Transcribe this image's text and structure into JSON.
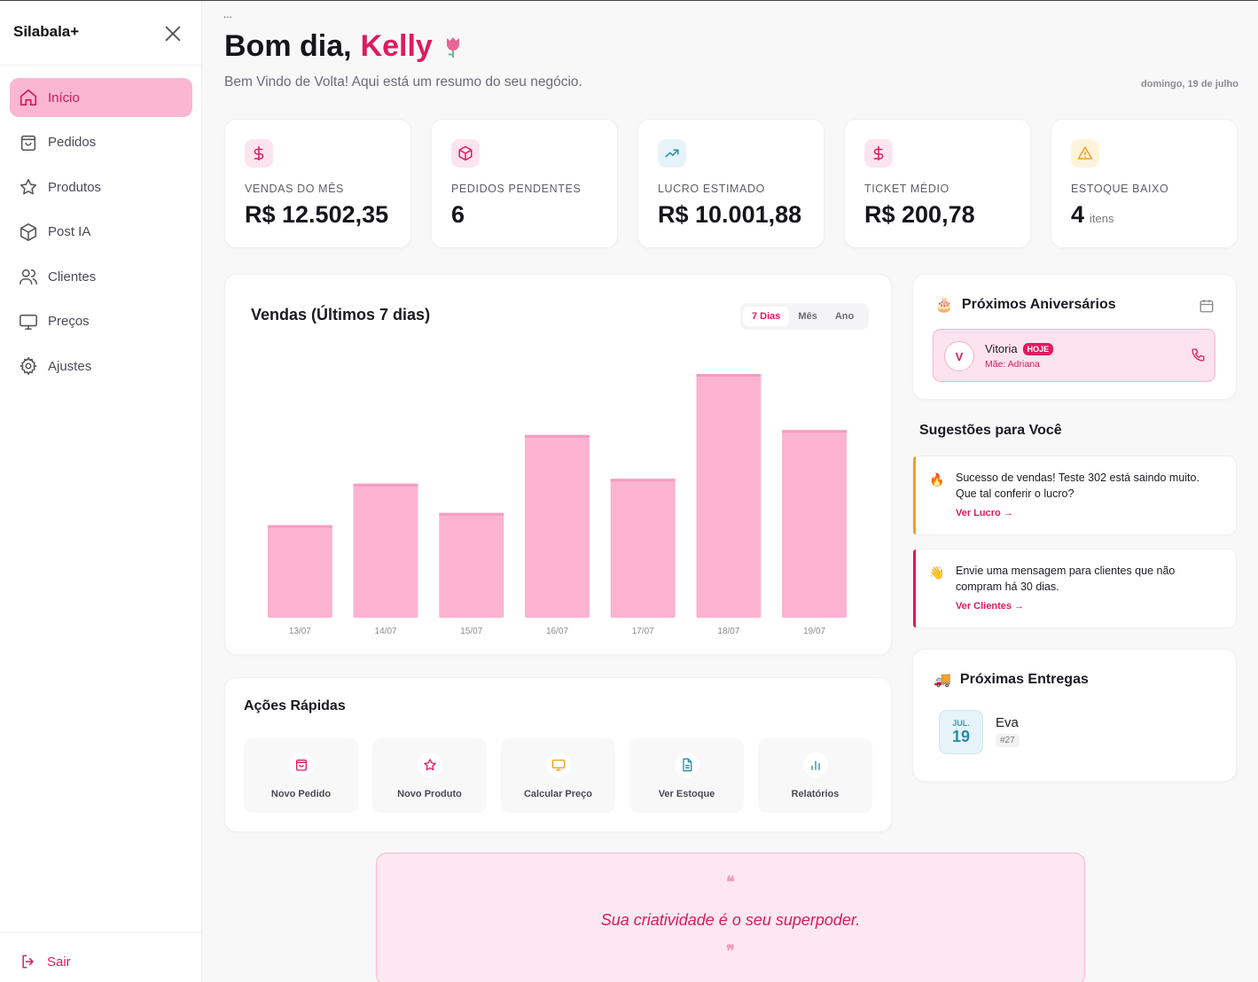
{
  "sidebar": {
    "brand": "Silabala+",
    "items": [
      {
        "label": "Início",
        "icon": "home-icon",
        "active": true
      },
      {
        "label": "Pedidos",
        "icon": "bag-icon"
      },
      {
        "label": "Produtos",
        "icon": "star-icon"
      },
      {
        "label": "Post IA",
        "icon": "box-icon"
      },
      {
        "label": "Clientes",
        "icon": "users-icon"
      },
      {
        "label": "Preços",
        "icon": "monitor-icon"
      },
      {
        "label": "Ajustes",
        "icon": "gear-icon"
      }
    ],
    "logout": "Sair"
  },
  "header": {
    "dots": "...",
    "greeting": "Bom dia,",
    "name": "Kelly",
    "subtitle": "Bem Vindo de Volta! Aqui está um resumo do seu negócio.",
    "date": "domingo, 19 de julho"
  },
  "stats": [
    {
      "label": "VENDAS DO MÊS",
      "value": "R$ 12.502,35",
      "unit": "",
      "icon": "dollar-icon",
      "bg": "#fde4ee",
      "color": "#e0195f"
    },
    {
      "label": "PEDIDOS PENDENTES",
      "value": "6",
      "unit": "",
      "icon": "box-icon",
      "bg": "#fde4ee",
      "color": "#e0195f"
    },
    {
      "label": "LUCRO ESTIMADO",
      "value": "R$ 10.001,88",
      "unit": "",
      "icon": "trend-up-icon",
      "bg": "#e6f4f8",
      "color": "#2a8aa8"
    },
    {
      "label": "TICKET MÉDIO",
      "value": "R$ 200,78",
      "unit": "",
      "icon": "dollar-icon",
      "bg": "#fde4ee",
      "color": "#e0195f"
    },
    {
      "label": "ESTOQUE BAIXO",
      "value": "4",
      "unit": "itens",
      "icon": "warning-icon",
      "bg": "#fff3dc",
      "color": "#f0a020"
    }
  ],
  "chart": {
    "title": "Vendas (Últimos 7 dias)",
    "tabs": [
      "7 Dias",
      "Mês",
      "Ano"
    ],
    "active_tab": "7 Dias"
  },
  "chart_data": {
    "type": "bar",
    "categories": [
      "13/07",
      "14/07",
      "15/07",
      "16/07",
      "17/07",
      "18/07",
      "19/07"
    ],
    "values": [
      38,
      55,
      43,
      75,
      57,
      100,
      77
    ],
    "ylim": [
      0,
      100
    ],
    "grid": false,
    "color": "#fbb3d1"
  },
  "quick_actions": {
    "title": "Ações Rápidas",
    "items": [
      {
        "label": "Novo Pedido",
        "icon": "bag-icon",
        "color": "#e0195f"
      },
      {
        "label": "Novo Produto",
        "icon": "star-icon",
        "color": "#e0195f"
      },
      {
        "label": "Calcular Preço",
        "icon": "monitor-icon",
        "color": "#f0a020"
      },
      {
        "label": "Ver Estoque",
        "icon": "document-icon",
        "color": "#2a8aa8"
      },
      {
        "label": "Relatórios",
        "icon": "bar-chart-icon",
        "color": "#2a8aa8"
      }
    ]
  },
  "quote": {
    "open": "❝",
    "text": "Sua criatividade é o seu superpoder.",
    "close": "❞"
  },
  "birthdays": {
    "title": "Próximos Aniversários",
    "emoji": "🎂",
    "items": [
      {
        "initial": "V",
        "name": "Vitoria",
        "badge": "HOJE",
        "mother": "Mãe: Adriana"
      }
    ]
  },
  "suggestions": {
    "title": "Sugestões para Você",
    "items": [
      {
        "emoji": "🔥",
        "text": "Sucesso de vendas! Teste 302 está saindo muito. Que tal conferir o lucro?",
        "link": "Ver Lucro →",
        "color": "#f0a020"
      },
      {
        "emoji": "👋",
        "text": "Envie uma mensagem para clientes que não compram há 30 dias.",
        "link": "Ver Clientes →",
        "color": "#e0195f"
      }
    ]
  },
  "deliveries": {
    "title": "Próximas Entregas",
    "emoji": "🚚",
    "items": [
      {
        "month": "JUL.",
        "day": "19",
        "name": "Eva",
        "order": "#27"
      }
    ]
  }
}
